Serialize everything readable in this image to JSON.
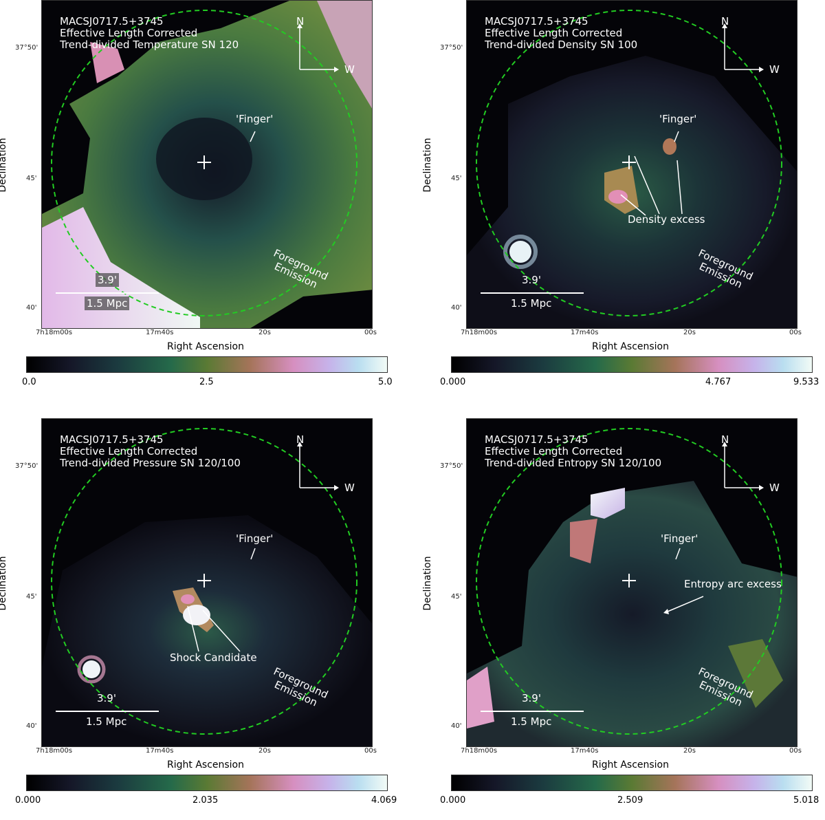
{
  "panels": [
    {
      "id": "temperature",
      "title_lines": [
        "MACSJ0717.5+3745",
        "Effective Length Corrected",
        "Trend-divided Temperature SN 120"
      ],
      "annotations": [
        "'Finger'",
        "Foreground",
        "Emission"
      ],
      "scale": {
        "angle": "3.9'",
        "length": "1.5 Mpc"
      },
      "colorbar_ticks": [
        "0.0",
        "2.5",
        "5.0"
      ],
      "colorbar_range": [
        0.0,
        5.0
      ]
    },
    {
      "id": "density",
      "title_lines": [
        "MACSJ0717.5+3745",
        "Effective Length Corrected",
        "Trend-divided Density SN 100"
      ],
      "annotations": [
        "'Finger'",
        "Density excess",
        "Foreground",
        "Emission"
      ],
      "scale": {
        "angle": "3.9'",
        "length": "1.5 Mpc"
      },
      "colorbar_ticks": [
        "0.000",
        "4.767",
        "9.533"
      ],
      "colorbar_range": [
        0.0,
        9.533
      ]
    },
    {
      "id": "pressure",
      "title_lines": [
        "MACSJ0717.5+3745",
        "Effective Length Corrected",
        "Trend-divided Pressure SN 120/100"
      ],
      "annotations": [
        "'Finger'",
        "Shock Candidate",
        "Foreground",
        "Emission"
      ],
      "scale": {
        "angle": "3.9'",
        "length": "1.5 Mpc"
      },
      "colorbar_ticks": [
        "0.000",
        "2.035",
        "4.069"
      ],
      "colorbar_range": [
        0.0,
        4.069
      ]
    },
    {
      "id": "entropy",
      "title_lines": [
        "MACSJ0717.5+3745",
        "Effective Length Corrected",
        "Trend-divided Entropy SN 120/100"
      ],
      "annotations": [
        "'Finger'",
        "Entropy arc excess",
        "Foreground",
        "Emission"
      ],
      "scale": {
        "angle": "3.9'",
        "length": "1.5 Mpc"
      },
      "colorbar_ticks": [
        "0.000",
        "2.509",
        "5.018"
      ],
      "colorbar_range": [
        0.0,
        5.018
      ]
    }
  ],
  "compass": {
    "north": "N",
    "west": "W"
  },
  "axes": {
    "xlabel": "Right Ascension",
    "ylabel": "Declination",
    "xticks": [
      "7h18m00s",
      "17m40s",
      "20s",
      "00s"
    ],
    "yticks": [
      "37°50'",
      "45'",
      "40'"
    ]
  },
  "colors": {
    "circle": "#22cc22",
    "text": "#ffffff"
  }
}
